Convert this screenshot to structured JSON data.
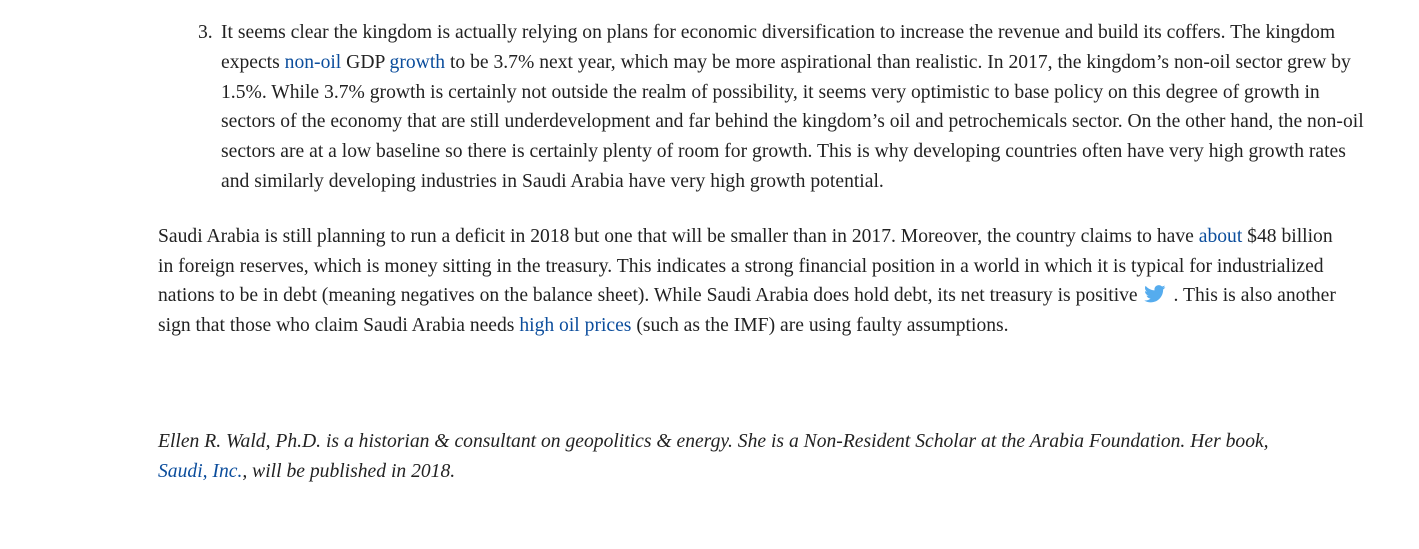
{
  "list_item": {
    "number": "3.",
    "text_1": "It seems clear the kingdom is actually relying on plans for economic diversification to increase the revenue and build its coffers. The kingdom expects ",
    "link_nonoil": "non-oil",
    "text_2": " GDP ",
    "link_growth": "growth",
    "text_3": " to be 3.7% next year, which may be more aspirational than realistic. In 2017, the kingdom’s non-oil sector grew by 1.5%. While 3.7% growth is certainly not outside the realm of possibility, it seems very optimistic to base policy on this degree of growth in sectors of the economy that are still underdevelopment and far behind the kingdom’s oil and petrochemicals sector. On the other hand, the non-oil sectors are at a low baseline so there is certainly plenty of room for growth. This is why developing countries often have very high growth rates and similarly developing industries in Saudi Arabia have very high growth potential."
  },
  "paragraph": {
    "text_1": "Saudi Arabia is still planning to run a deficit in 2018 but one that will be smaller than in 2017. Moreover, the country claims to have ",
    "link_about": "about",
    "text_2": " $48 billion in foreign reserves, which is money sitting in the treasury. This indicates a strong financial position in a world in which it is typical for industrialized nations to be in debt (meaning negatives on the balance sheet). While Saudi Arabia does hold debt, its net treasury is positive",
    "text_3": ". This is also another sign that those who claim Saudi Arabia needs ",
    "link_oil_prices": "high oil prices",
    "text_4": " (such as the IMF) are using faulty assumptions."
  },
  "bio": {
    "text_1": "Ellen R. Wald, Ph.D. is a historian & consultant on geopolitics & energy. She is a Non-Resident Scholar at the Arabia Foundation. Her book, ",
    "link_book": "Saudi, Inc.",
    "text_2": ", will be published in 2018."
  },
  "icons": {
    "tweet": "twitter-bird-icon"
  },
  "colors": {
    "text": "#222222",
    "link": "#0b4d9c",
    "twitter": "#55acee"
  }
}
